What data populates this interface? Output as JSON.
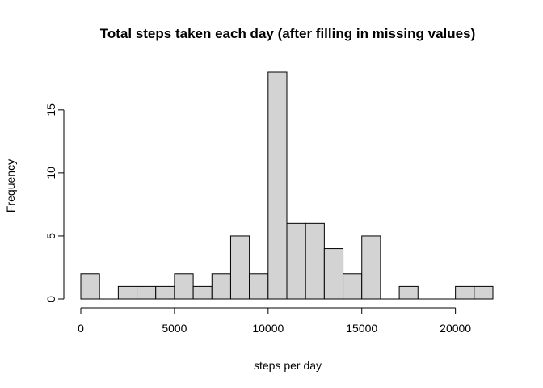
{
  "chart_data": {
    "type": "bar",
    "chart_subtype": "histogram",
    "title": "Total steps taken each day (after filling in missing values)",
    "xlabel": "steps per day",
    "ylabel": "Frequency",
    "bin_width": 1000,
    "bins": [
      {
        "start": 0,
        "end": 1000,
        "count": 2
      },
      {
        "start": 1000,
        "end": 2000,
        "count": 0
      },
      {
        "start": 2000,
        "end": 3000,
        "count": 1
      },
      {
        "start": 3000,
        "end": 4000,
        "count": 1
      },
      {
        "start": 4000,
        "end": 5000,
        "count": 1
      },
      {
        "start": 5000,
        "end": 6000,
        "count": 2
      },
      {
        "start": 6000,
        "end": 7000,
        "count": 1
      },
      {
        "start": 7000,
        "end": 8000,
        "count": 2
      },
      {
        "start": 8000,
        "end": 9000,
        "count": 5
      },
      {
        "start": 9000,
        "end": 10000,
        "count": 2
      },
      {
        "start": 10000,
        "end": 11000,
        "count": 18
      },
      {
        "start": 11000,
        "end": 12000,
        "count": 6
      },
      {
        "start": 12000,
        "end": 13000,
        "count": 6
      },
      {
        "start": 13000,
        "end": 14000,
        "count": 4
      },
      {
        "start": 14000,
        "end": 15000,
        "count": 2
      },
      {
        "start": 15000,
        "end": 16000,
        "count": 5
      },
      {
        "start": 16000,
        "end": 17000,
        "count": 0
      },
      {
        "start": 17000,
        "end": 18000,
        "count": 1
      },
      {
        "start": 18000,
        "end": 19000,
        "count": 0
      },
      {
        "start": 19000,
        "end": 20000,
        "count": 0
      },
      {
        "start": 20000,
        "end": 21000,
        "count": 1
      },
      {
        "start": 21000,
        "end": 22000,
        "count": 1
      }
    ],
    "xlim": [
      0,
      22000
    ],
    "ylim": [
      0,
      18
    ],
    "x_ticks": [
      0,
      5000,
      10000,
      15000,
      20000
    ],
    "y_ticks": [
      0,
      5,
      10,
      15
    ],
    "bar_fill": "#d3d3d3",
    "bar_stroke": "#000000",
    "grid": false,
    "legend": "none"
  }
}
